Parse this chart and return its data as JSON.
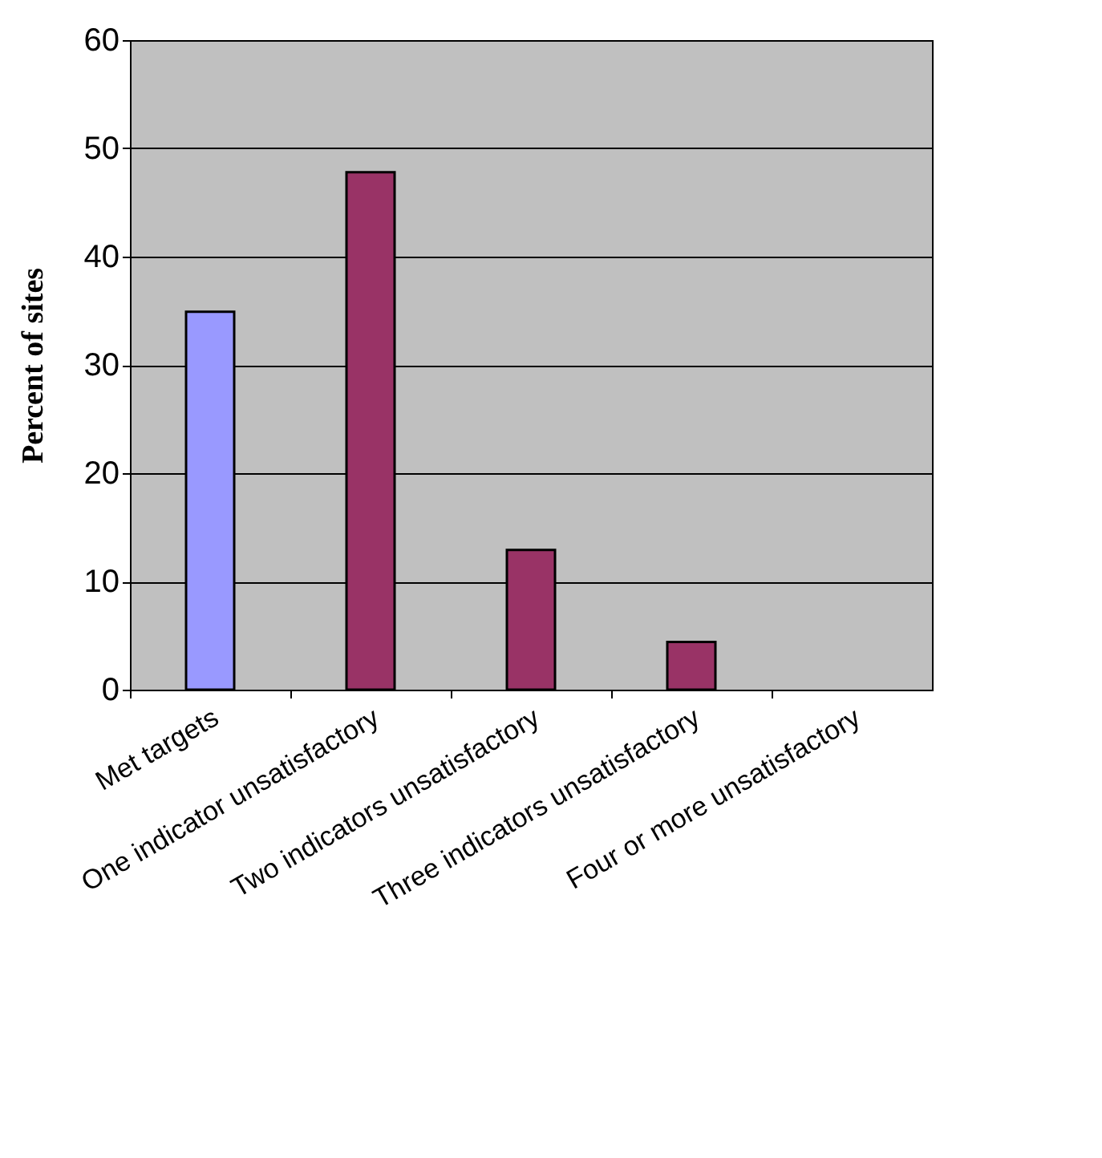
{
  "chart_data": {
    "type": "bar",
    "ylabel": "Percent of sites",
    "categories": [
      "Met targets",
      "One indicator unsatisfactory",
      "Two indicators unsatisfactory",
      "Three indicators unsatisfactory",
      "Four or more unsatisfactory"
    ],
    "values": [
      34.9,
      47.8,
      12.9,
      4.4,
      null
    ],
    "colors": [
      "#9999ff",
      "#993366",
      "#993366",
      "#993366",
      "#993366"
    ],
    "ylim": [
      0,
      60
    ],
    "yticks": [
      0,
      10,
      20,
      30,
      40,
      50,
      60
    ],
    "grid": "y"
  }
}
